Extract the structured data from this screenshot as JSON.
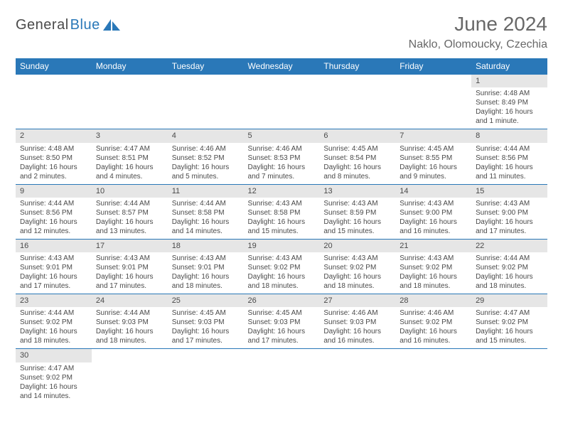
{
  "logo": {
    "text1": "General",
    "text2": "Blue"
  },
  "title": "June 2024",
  "location": "Naklo, Olomoucky, Czechia",
  "colors": {
    "header_bg": "#2a78b8",
    "header_fg": "#ffffff",
    "daynum_bg": "#e6e6e6",
    "text": "#4a4a4a",
    "rule": "#2a78b8",
    "title": "#686868"
  },
  "day_headers": [
    "Sunday",
    "Monday",
    "Tuesday",
    "Wednesday",
    "Thursday",
    "Friday",
    "Saturday"
  ],
  "weeks": [
    [
      null,
      null,
      null,
      null,
      null,
      null,
      {
        "n": "1",
        "sunrise": "Sunrise: 4:48 AM",
        "sunset": "Sunset: 8:49 PM",
        "d1": "Daylight: 16 hours",
        "d2": "and 1 minute."
      }
    ],
    [
      {
        "n": "2",
        "sunrise": "Sunrise: 4:48 AM",
        "sunset": "Sunset: 8:50 PM",
        "d1": "Daylight: 16 hours",
        "d2": "and 2 minutes."
      },
      {
        "n": "3",
        "sunrise": "Sunrise: 4:47 AM",
        "sunset": "Sunset: 8:51 PM",
        "d1": "Daylight: 16 hours",
        "d2": "and 4 minutes."
      },
      {
        "n": "4",
        "sunrise": "Sunrise: 4:46 AM",
        "sunset": "Sunset: 8:52 PM",
        "d1": "Daylight: 16 hours",
        "d2": "and 5 minutes."
      },
      {
        "n": "5",
        "sunrise": "Sunrise: 4:46 AM",
        "sunset": "Sunset: 8:53 PM",
        "d1": "Daylight: 16 hours",
        "d2": "and 7 minutes."
      },
      {
        "n": "6",
        "sunrise": "Sunrise: 4:45 AM",
        "sunset": "Sunset: 8:54 PM",
        "d1": "Daylight: 16 hours",
        "d2": "and 8 minutes."
      },
      {
        "n": "7",
        "sunrise": "Sunrise: 4:45 AM",
        "sunset": "Sunset: 8:55 PM",
        "d1": "Daylight: 16 hours",
        "d2": "and 9 minutes."
      },
      {
        "n": "8",
        "sunrise": "Sunrise: 4:44 AM",
        "sunset": "Sunset: 8:56 PM",
        "d1": "Daylight: 16 hours",
        "d2": "and 11 minutes."
      }
    ],
    [
      {
        "n": "9",
        "sunrise": "Sunrise: 4:44 AM",
        "sunset": "Sunset: 8:56 PM",
        "d1": "Daylight: 16 hours",
        "d2": "and 12 minutes."
      },
      {
        "n": "10",
        "sunrise": "Sunrise: 4:44 AM",
        "sunset": "Sunset: 8:57 PM",
        "d1": "Daylight: 16 hours",
        "d2": "and 13 minutes."
      },
      {
        "n": "11",
        "sunrise": "Sunrise: 4:44 AM",
        "sunset": "Sunset: 8:58 PM",
        "d1": "Daylight: 16 hours",
        "d2": "and 14 minutes."
      },
      {
        "n": "12",
        "sunrise": "Sunrise: 4:43 AM",
        "sunset": "Sunset: 8:58 PM",
        "d1": "Daylight: 16 hours",
        "d2": "and 15 minutes."
      },
      {
        "n": "13",
        "sunrise": "Sunrise: 4:43 AM",
        "sunset": "Sunset: 8:59 PM",
        "d1": "Daylight: 16 hours",
        "d2": "and 15 minutes."
      },
      {
        "n": "14",
        "sunrise": "Sunrise: 4:43 AM",
        "sunset": "Sunset: 9:00 PM",
        "d1": "Daylight: 16 hours",
        "d2": "and 16 minutes."
      },
      {
        "n": "15",
        "sunrise": "Sunrise: 4:43 AM",
        "sunset": "Sunset: 9:00 PM",
        "d1": "Daylight: 16 hours",
        "d2": "and 17 minutes."
      }
    ],
    [
      {
        "n": "16",
        "sunrise": "Sunrise: 4:43 AM",
        "sunset": "Sunset: 9:01 PM",
        "d1": "Daylight: 16 hours",
        "d2": "and 17 minutes."
      },
      {
        "n": "17",
        "sunrise": "Sunrise: 4:43 AM",
        "sunset": "Sunset: 9:01 PM",
        "d1": "Daylight: 16 hours",
        "d2": "and 17 minutes."
      },
      {
        "n": "18",
        "sunrise": "Sunrise: 4:43 AM",
        "sunset": "Sunset: 9:01 PM",
        "d1": "Daylight: 16 hours",
        "d2": "and 18 minutes."
      },
      {
        "n": "19",
        "sunrise": "Sunrise: 4:43 AM",
        "sunset": "Sunset: 9:02 PM",
        "d1": "Daylight: 16 hours",
        "d2": "and 18 minutes."
      },
      {
        "n": "20",
        "sunrise": "Sunrise: 4:43 AM",
        "sunset": "Sunset: 9:02 PM",
        "d1": "Daylight: 16 hours",
        "d2": "and 18 minutes."
      },
      {
        "n": "21",
        "sunrise": "Sunrise: 4:43 AM",
        "sunset": "Sunset: 9:02 PM",
        "d1": "Daylight: 16 hours",
        "d2": "and 18 minutes."
      },
      {
        "n": "22",
        "sunrise": "Sunrise: 4:44 AM",
        "sunset": "Sunset: 9:02 PM",
        "d1": "Daylight: 16 hours",
        "d2": "and 18 minutes."
      }
    ],
    [
      {
        "n": "23",
        "sunrise": "Sunrise: 4:44 AM",
        "sunset": "Sunset: 9:02 PM",
        "d1": "Daylight: 16 hours",
        "d2": "and 18 minutes."
      },
      {
        "n": "24",
        "sunrise": "Sunrise: 4:44 AM",
        "sunset": "Sunset: 9:03 PM",
        "d1": "Daylight: 16 hours",
        "d2": "and 18 minutes."
      },
      {
        "n": "25",
        "sunrise": "Sunrise: 4:45 AM",
        "sunset": "Sunset: 9:03 PM",
        "d1": "Daylight: 16 hours",
        "d2": "and 17 minutes."
      },
      {
        "n": "26",
        "sunrise": "Sunrise: 4:45 AM",
        "sunset": "Sunset: 9:03 PM",
        "d1": "Daylight: 16 hours",
        "d2": "and 17 minutes."
      },
      {
        "n": "27",
        "sunrise": "Sunrise: 4:46 AM",
        "sunset": "Sunset: 9:03 PM",
        "d1": "Daylight: 16 hours",
        "d2": "and 16 minutes."
      },
      {
        "n": "28",
        "sunrise": "Sunrise: 4:46 AM",
        "sunset": "Sunset: 9:02 PM",
        "d1": "Daylight: 16 hours",
        "d2": "and 16 minutes."
      },
      {
        "n": "29",
        "sunrise": "Sunrise: 4:47 AM",
        "sunset": "Sunset: 9:02 PM",
        "d1": "Daylight: 16 hours",
        "d2": "and 15 minutes."
      }
    ],
    [
      {
        "n": "30",
        "sunrise": "Sunrise: 4:47 AM",
        "sunset": "Sunset: 9:02 PM",
        "d1": "Daylight: 16 hours",
        "d2": "and 14 minutes."
      },
      null,
      null,
      null,
      null,
      null,
      null
    ]
  ]
}
